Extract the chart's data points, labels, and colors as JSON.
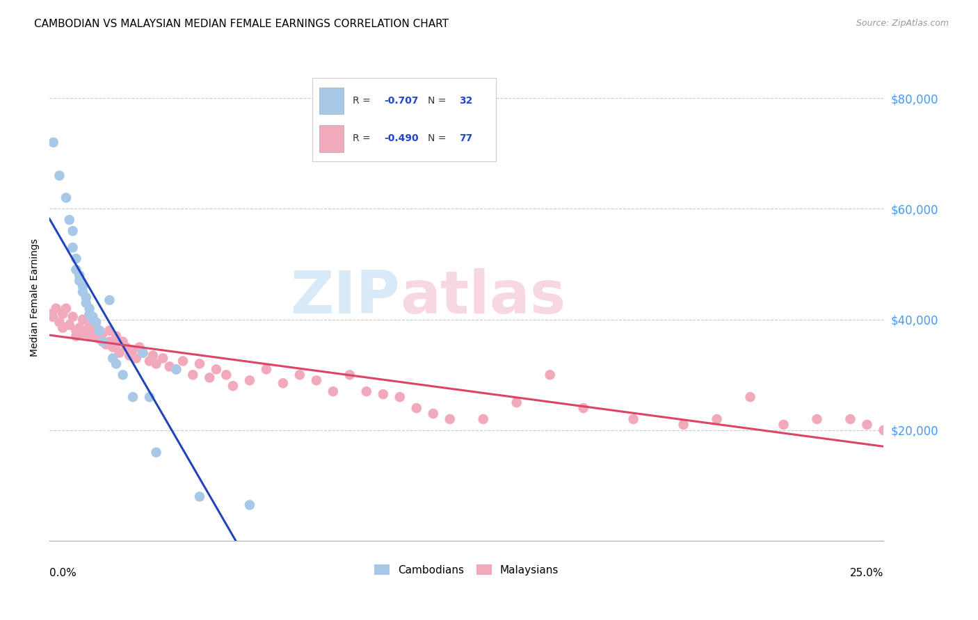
{
  "title": "CAMBODIAN VS MALAYSIAN MEDIAN FEMALE EARNINGS CORRELATION CHART",
  "source": "Source: ZipAtlas.com",
  "ylabel": "Median Female Earnings",
  "xmin": 0.0,
  "xmax": 0.25,
  "ymin": 0,
  "ymax": 88000,
  "yticks": [
    20000,
    40000,
    60000,
    80000
  ],
  "ytick_labels": [
    "$20,000",
    "$40,000",
    "$60,000",
    "$80,000"
  ],
  "watermark_zip": "ZIP",
  "watermark_atlas": "atlas",
  "legend_r_camb": "-0.707",
  "legend_n_camb": "32",
  "legend_r_malay": "-0.490",
  "legend_n_malay": "77",
  "camb_color": "#a8c8e8",
  "malay_color": "#f0aabc",
  "camb_line_color": "#2244bb",
  "malay_line_color": "#dd4466",
  "dash_color": "#bbbbbb",
  "camb_x": [
    0.0012,
    0.003,
    0.005,
    0.006,
    0.007,
    0.007,
    0.008,
    0.008,
    0.009,
    0.009,
    0.01,
    0.01,
    0.011,
    0.011,
    0.012,
    0.012,
    0.013,
    0.013,
    0.014,
    0.015,
    0.016,
    0.018,
    0.019,
    0.02,
    0.022,
    0.025,
    0.028,
    0.03,
    0.032,
    0.038,
    0.045,
    0.06
  ],
  "camb_y": [
    72000,
    66000,
    62000,
    58000,
    56000,
    53000,
    51000,
    49000,
    48000,
    47000,
    46000,
    45000,
    44000,
    43000,
    42000,
    41000,
    40500,
    40000,
    39500,
    38000,
    36000,
    43500,
    33000,
    32000,
    30000,
    26000,
    34000,
    26000,
    16000,
    31000,
    8000,
    6500
  ],
  "malay_x": [
    0.0005,
    0.001,
    0.002,
    0.003,
    0.004,
    0.004,
    0.005,
    0.006,
    0.007,
    0.008,
    0.008,
    0.009,
    0.01,
    0.01,
    0.011,
    0.012,
    0.012,
    0.013,
    0.014,
    0.014,
    0.015,
    0.015,
    0.016,
    0.016,
    0.017,
    0.018,
    0.018,
    0.019,
    0.02,
    0.02,
    0.021,
    0.022,
    0.023,
    0.024,
    0.025,
    0.026,
    0.027,
    0.028,
    0.03,
    0.031,
    0.032,
    0.034,
    0.036,
    0.038,
    0.04,
    0.043,
    0.045,
    0.048,
    0.05,
    0.053,
    0.055,
    0.06,
    0.065,
    0.07,
    0.075,
    0.08,
    0.085,
    0.09,
    0.095,
    0.1,
    0.105,
    0.11,
    0.115,
    0.12,
    0.13,
    0.14,
    0.15,
    0.16,
    0.175,
    0.19,
    0.2,
    0.21,
    0.22,
    0.23,
    0.24,
    0.245,
    0.25
  ],
  "malay_y": [
    41000,
    40500,
    42000,
    39500,
    41000,
    38500,
    42000,
    39000,
    40500,
    38000,
    37000,
    38500,
    37500,
    40000,
    38000,
    37000,
    39000,
    37500,
    37000,
    38500,
    36500,
    38000,
    36000,
    37500,
    35500,
    36000,
    38000,
    35000,
    37000,
    35500,
    34000,
    36000,
    35000,
    33500,
    34500,
    33000,
    35000,
    34000,
    32500,
    33500,
    32000,
    33000,
    31500,
    31000,
    32500,
    30000,
    32000,
    29500,
    31000,
    30000,
    28000,
    29000,
    31000,
    28500,
    30000,
    29000,
    27000,
    30000,
    27000,
    26500,
    26000,
    24000,
    23000,
    22000,
    22000,
    25000,
    30000,
    24000,
    22000,
    21000,
    22000,
    26000,
    21000,
    22000,
    22000,
    21000,
    20000
  ]
}
